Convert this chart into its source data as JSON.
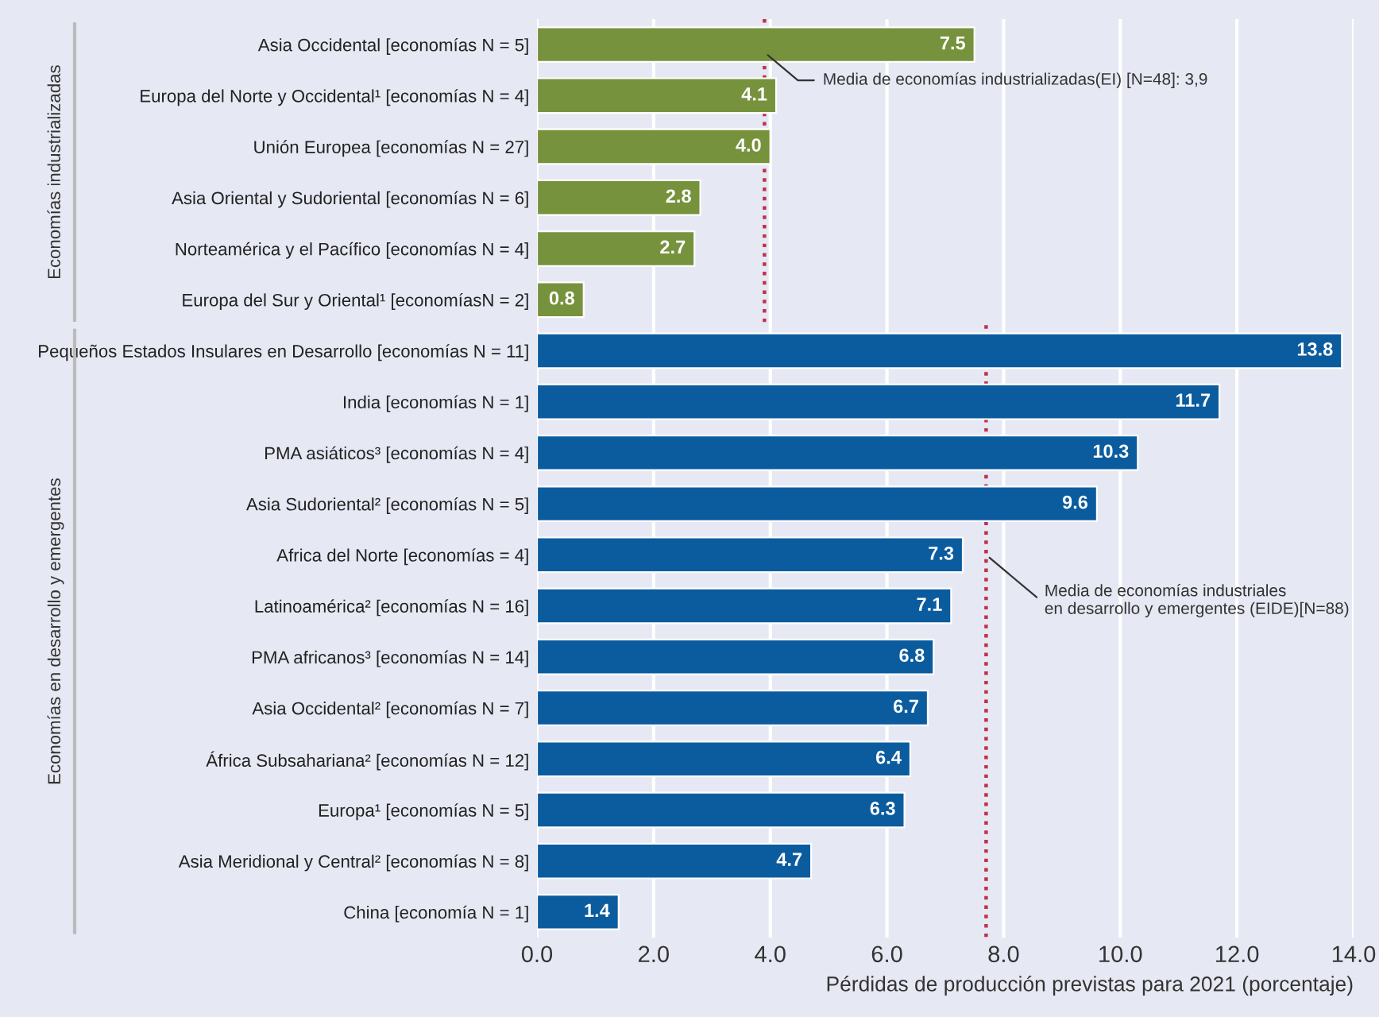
{
  "chart_data": {
    "type": "bar",
    "orientation": "horizontal",
    "xlabel": "Pérdidas de producción previstas para 2021 (porcentaje)",
    "categories": [
      "Asia Occidental [economías N = 5]",
      "Europa del Norte y Occidental¹ [economías N = 4]",
      "Unión Europea [economías N = 27]",
      "Asia Oriental y Sudoriental [economías N = 6]",
      "Norteamérica y el Pacífico [economías N = 4]",
      "Europa del Sur y Oriental¹ [economíasN = 2]",
      "Pequeños Estados Insulares en Desarrollo [economías N = 11]",
      "India [economías N = 1]",
      "PMA asiáticos³ [economías N = 4]",
      "Asia Sudoriental² [economías N = 5]",
      "Africa del Norte [economías = 4]",
      "Latinoamérica² [economías N = 16]",
      "PMA africanos³ [economías N = 14]",
      "Asia Occidental² [economías N = 7]",
      "África Subsahariana² [economías N = 12]",
      "Europa¹ [economías N = 5]",
      "Asia Meridional y Central² [economías N = 8]",
      "China [economía N = 1]"
    ],
    "series": [
      {
        "color": "#76923c",
        "values": [
          7.5,
          4.1,
          4.0,
          2.8,
          2.7,
          0.8,
          null,
          null,
          null,
          null,
          null,
          null,
          null,
          null,
          null,
          null,
          null,
          null
        ],
        "value_labels": [
          "7.5",
          "4.1",
          "4.0",
          "2.8",
          "2.7",
          "0.8",
          null,
          null,
          null,
          null,
          null,
          null,
          null,
          null,
          null,
          null,
          null,
          null
        ]
      },
      {
        "color": "#0b5c9e",
        "values": [
          null,
          null,
          null,
          null,
          null,
          null,
          13.8,
          11.7,
          10.3,
          9.6,
          7.3,
          7.1,
          6.8,
          6.7,
          6.4,
          6.3,
          4.7,
          1.4
        ],
        "value_labels": [
          null,
          null,
          null,
          null,
          null,
          null,
          "13.8",
          "11.7",
          "10.3",
          "9.6",
          "7.3",
          "7.1",
          "6.8",
          "6.7",
          "6.4",
          "6.3",
          "4.7",
          "1.4"
        ]
      }
    ],
    "xlim": [
      0,
      14
    ],
    "xticks": [
      {
        "value": 0,
        "label": "0.0"
      },
      {
        "value": 2,
        "label": "2.0"
      },
      {
        "value": 4,
        "label": "4.0"
      },
      {
        "value": 6,
        "label": "6.0"
      },
      {
        "value": 8,
        "label": "8.0"
      },
      {
        "value": 10,
        "label": "10.0"
      },
      {
        "value": 12,
        "label": "12.0"
      },
      {
        "value": 14,
        "label": "14.0"
      }
    ],
    "grid": "x",
    "ref_lines": [
      {
        "axis": "x",
        "value": 3.9,
        "label": "Media de economías industrializadas(EI) [N=48]: 3,9",
        "color": "#c0304a",
        "line_style": "dotted"
      },
      {
        "axis": "x",
        "value": 7.7,
        "color": "#c0304a",
        "line_style": "dotted"
      }
    ],
    "annotations": [
      "Economías industrializadas",
      "Economías en desarrollo y emergentes",
      {
        "text": "Media de economías industriales\nen desarrollo y emergentes (EIDE)[N=88)",
        "x": 7.7,
        "y": "Africa del Norte [economías = 4]"
      }
    ]
  }
}
